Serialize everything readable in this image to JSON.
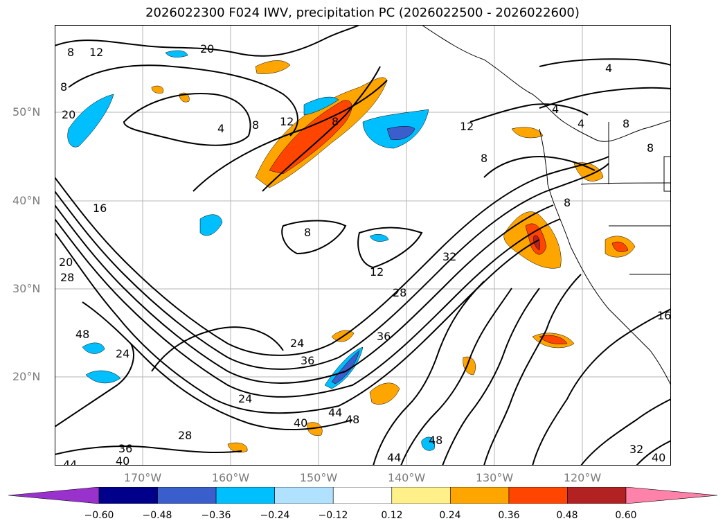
{
  "title": "2026022300 F024 IWV, precipitation PC (2026022500 - 2026022600)",
  "axes": {
    "lat_labels": [
      "50°N",
      "40°N",
      "30°N",
      "20°N"
    ],
    "lon_labels": [
      "170°W",
      "160°W",
      "150°W",
      "140°W",
      "130°W",
      "120°W"
    ]
  },
  "contour_labels": [
    "20",
    "12",
    "8",
    "20",
    "4",
    "8",
    "12",
    "8",
    "4",
    "4",
    "4",
    "8",
    "12",
    "8",
    "8",
    "16",
    "8",
    "12",
    "32",
    "28",
    "8",
    "36",
    "24",
    "36",
    "24",
    "28",
    "24",
    "40",
    "44",
    "48",
    "44",
    "48",
    "36",
    "40",
    "44",
    "32",
    "40",
    "20",
    "28",
    "8",
    "48",
    "16"
  ],
  "colorbar": {
    "colors": [
      "#9932cc",
      "#00008b",
      "#3a5fcd",
      "#00bfff",
      "#b0e2ff",
      "#ffffff",
      "#fff08a",
      "#ffa500",
      "#ff4500",
      "#b22222",
      "#ff82ab"
    ],
    "ticks": [
      "−0.60",
      "−0.48",
      "−0.36",
      "−0.24",
      "−0.12",
      "0.12",
      "0.24",
      "0.36",
      "0.48",
      "0.60"
    ]
  },
  "colors": {
    "light_blue": "#b0e2ff",
    "sky_blue": "#00bfff",
    "medium_blue": "#3a5fcd",
    "yellow": "#fff08a",
    "orange": "#ffa500",
    "red_orange": "#ff4500",
    "dark_red": "#b22222",
    "pink": "#ff82ab",
    "grid": "#a9a9a9",
    "axis_label": "#7a7a7a"
  }
}
